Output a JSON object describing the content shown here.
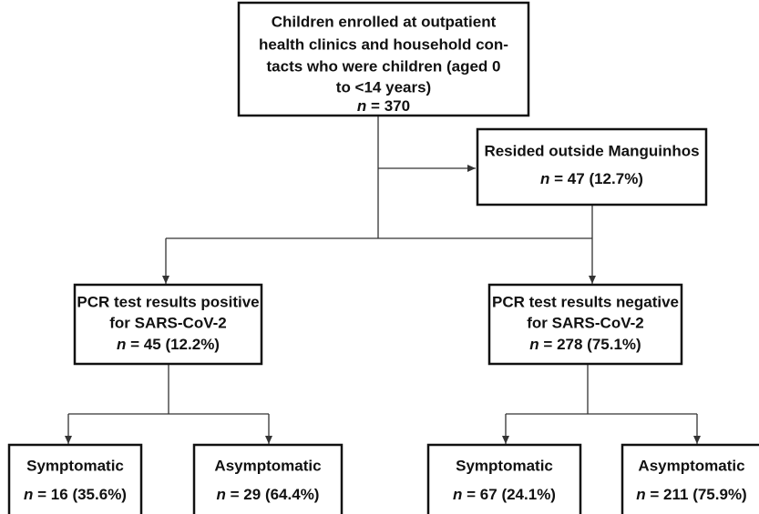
{
  "nodes": [
    {
      "label": [
        "Children enrolled at outpatient",
        "health clinics and household con-",
        "tacts who were children (aged 0",
        "to <14 years)"
      ],
      "count": {
        "var": "n",
        "text": "= 370"
      }
    },
    {
      "label": [
        "Resided outside Manguinhos"
      ],
      "count": {
        "var": "n",
        "text": "= 47 (12.7%)"
      }
    },
    {
      "label": [
        "PCR test results positive",
        "for SARS-CoV-2"
      ],
      "count": {
        "var": "n",
        "text": "= 45 (12.2%)"
      }
    },
    {
      "label": [
        "PCR test results negative",
        "for SARS-CoV-2"
      ],
      "count": {
        "var": "n",
        "text": "= 278 (75.1%)"
      }
    },
    {
      "label": [
        "Symptomatic"
      ],
      "count": {
        "var": "n",
        "text": "= 16 (35.6%)"
      }
    },
    {
      "label": [
        "Asymptomatic"
      ],
      "count": {
        "var": "n",
        "text": "= 29 (64.4%)"
      }
    },
    {
      "label": [
        "Symptomatic"
      ],
      "count": {
        "var": "n",
        "text": "= 67 (24.1%)"
      }
    },
    {
      "label": [
        "Asymptomatic"
      ],
      "count": {
        "var": "n",
        "text": "= 211 (75.9%)"
      }
    }
  ]
}
